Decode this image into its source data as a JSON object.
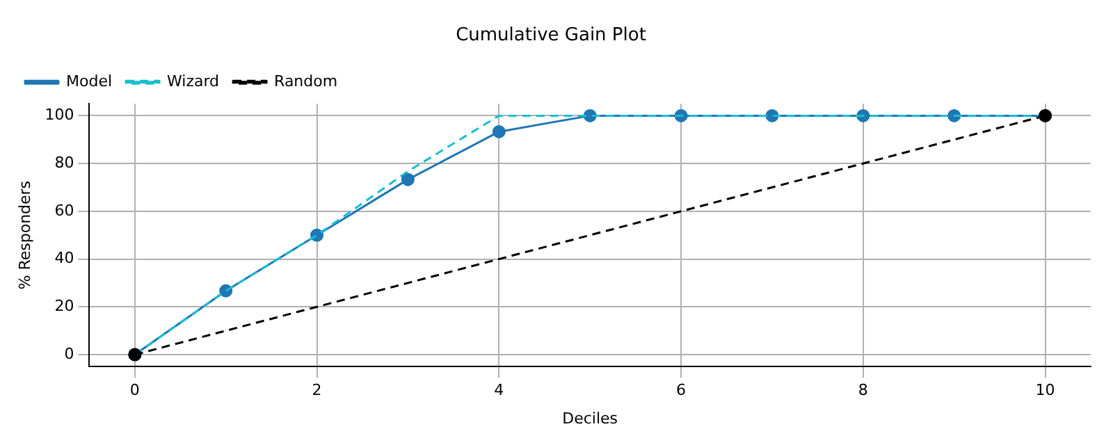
{
  "chart_data": {
    "type": "line",
    "title": "Cumulative Gain Plot",
    "xlabel": "Deciles",
    "ylabel": "% Responders",
    "x": [
      0,
      1,
      2,
      3,
      4,
      5,
      6,
      7,
      8,
      9,
      10
    ],
    "series": [
      {
        "name": "Model",
        "color": "#1f77b4",
        "marker": "circle",
        "line_style": "solid",
        "values": [
          0,
          26.7,
          50,
          73.3,
          93.3,
          100,
          100,
          100,
          100,
          100,
          100
        ]
      },
      {
        "name": "Wizard",
        "color": "#17becf",
        "marker": "none",
        "line_style": "dashed",
        "values": [
          0,
          26.7,
          50,
          76.7,
          100,
          100,
          100,
          100,
          100,
          100,
          100
        ]
      },
      {
        "name": "Random",
        "color": "#000000",
        "marker": "circle",
        "line_style": "dashed",
        "x": [
          0,
          10
        ],
        "values": [
          0,
          100
        ]
      }
    ],
    "xlim": [
      -0.5,
      10.5
    ],
    "xticks": [
      0,
      2,
      4,
      6,
      8,
      10
    ],
    "ylim": [
      -5,
      105
    ],
    "yticks": [
      0,
      20,
      40,
      60,
      80,
      100
    ],
    "grid": true,
    "legend": "top left"
  }
}
